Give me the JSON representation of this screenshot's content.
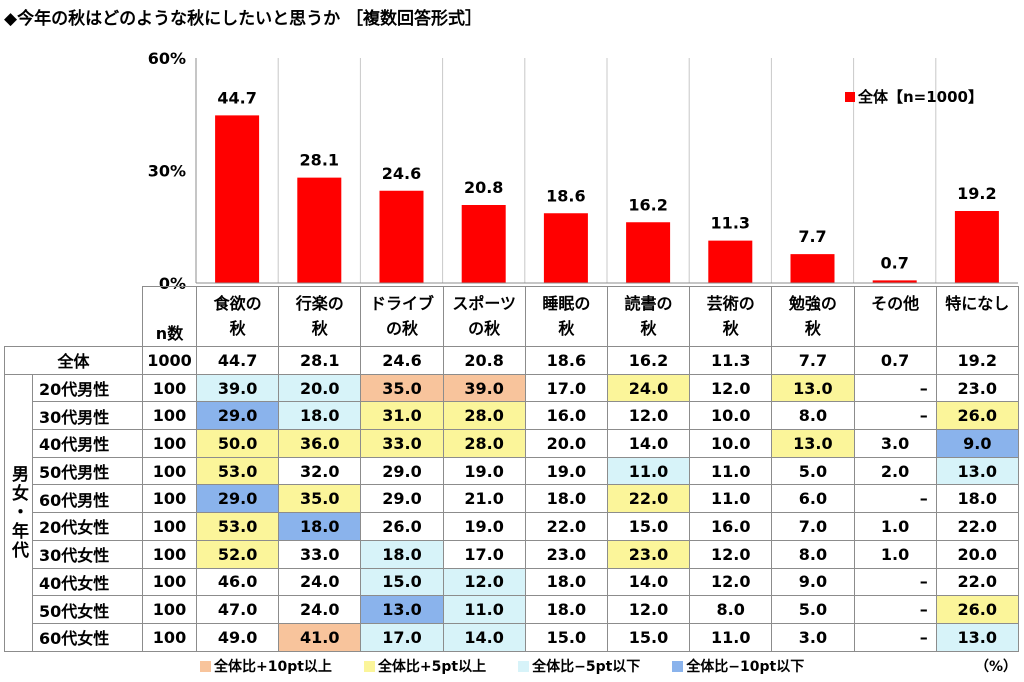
{
  "title": "◆今年の秋はどのような秋にしたいと思うか ［複数回答形式］",
  "chart_data": {
    "type": "bar",
    "categories": [
      "食欲の\n秋",
      "行楽の\n秋",
      "ドライブ\nの秋",
      "スポーツ\nの秋",
      "睡眠の\n秋",
      "読書の\n秋",
      "芸術の\n秋",
      "勉強の\n秋",
      "その他",
      "特になし"
    ],
    "series": [
      {
        "name": "全体【n=1000】",
        "values": [
          44.7,
          28.1,
          24.6,
          20.8,
          18.6,
          16.2,
          11.3,
          7.7,
          0.7,
          19.2
        ]
      }
    ],
    "data_labels": [
      "44.7",
      "28.1",
      "24.6",
      "20.8",
      "18.6",
      "16.2",
      "11.3",
      "7.7",
      "0.7",
      "19.2"
    ],
    "y_ticks": [
      "60%",
      "30%",
      "0%"
    ],
    "ylim": [
      0,
      60
    ],
    "bar_color": "#ff0000",
    "legend_position": "top-right"
  },
  "table": {
    "n_header": "n数",
    "group_label": "男女・年代",
    "total_row": {
      "label": "全体",
      "n": "1000",
      "values": [
        "44.7",
        "28.1",
        "24.6",
        "20.8",
        "18.6",
        "16.2",
        "11.3",
        "7.7",
        "0.7",
        "19.2"
      ]
    },
    "rows": [
      {
        "label": "20代男性",
        "n": "100",
        "values": [
          "39.0",
          "20.0",
          "35.0",
          "39.0",
          "17.0",
          "24.0",
          "12.0",
          "13.0",
          "–",
          "23.0"
        ],
        "shading": [
          3,
          3,
          1,
          1,
          0,
          2,
          0,
          2,
          0,
          0
        ]
      },
      {
        "label": "30代男性",
        "n": "100",
        "values": [
          "29.0",
          "18.0",
          "31.0",
          "28.0",
          "16.0",
          "12.0",
          "10.0",
          "8.0",
          "–",
          "26.0"
        ],
        "shading": [
          4,
          3,
          2,
          2,
          0,
          0,
          0,
          0,
          0,
          2
        ]
      },
      {
        "label": "40代男性",
        "n": "100",
        "values": [
          "50.0",
          "36.0",
          "33.0",
          "28.0",
          "20.0",
          "14.0",
          "10.0",
          "13.0",
          "3.0",
          "9.0"
        ],
        "shading": [
          2,
          2,
          2,
          2,
          0,
          0,
          0,
          2,
          0,
          4
        ]
      },
      {
        "label": "50代男性",
        "n": "100",
        "values": [
          "53.0",
          "32.0",
          "29.0",
          "19.0",
          "19.0",
          "11.0",
          "11.0",
          "5.0",
          "2.0",
          "13.0"
        ],
        "shading": [
          2,
          0,
          0,
          0,
          0,
          3,
          0,
          0,
          0,
          3
        ]
      },
      {
        "label": "60代男性",
        "n": "100",
        "values": [
          "29.0",
          "35.0",
          "29.0",
          "21.0",
          "18.0",
          "22.0",
          "11.0",
          "6.0",
          "–",
          "18.0"
        ],
        "shading": [
          4,
          2,
          0,
          0,
          0,
          2,
          0,
          0,
          0,
          0
        ]
      },
      {
        "label": "20代女性",
        "n": "100",
        "values": [
          "53.0",
          "18.0",
          "26.0",
          "19.0",
          "22.0",
          "15.0",
          "16.0",
          "7.0",
          "1.0",
          "22.0"
        ],
        "shading": [
          2,
          4,
          0,
          0,
          0,
          0,
          0,
          0,
          0,
          0
        ]
      },
      {
        "label": "30代女性",
        "n": "100",
        "values": [
          "52.0",
          "33.0",
          "18.0",
          "17.0",
          "23.0",
          "23.0",
          "12.0",
          "8.0",
          "1.0",
          "20.0"
        ],
        "shading": [
          2,
          0,
          3,
          0,
          0,
          2,
          0,
          0,
          0,
          0
        ]
      },
      {
        "label": "40代女性",
        "n": "100",
        "values": [
          "46.0",
          "24.0",
          "15.0",
          "12.0",
          "18.0",
          "14.0",
          "12.0",
          "9.0",
          "–",
          "22.0"
        ],
        "shading": [
          0,
          0,
          3,
          3,
          0,
          0,
          0,
          0,
          0,
          0
        ]
      },
      {
        "label": "50代女性",
        "n": "100",
        "values": [
          "47.0",
          "24.0",
          "13.0",
          "11.0",
          "18.0",
          "12.0",
          "8.0",
          "5.0",
          "–",
          "26.0"
        ],
        "shading": [
          0,
          0,
          4,
          3,
          0,
          0,
          0,
          0,
          0,
          2
        ]
      },
      {
        "label": "60代女性",
        "n": "100",
        "values": [
          "49.0",
          "41.0",
          "17.0",
          "14.0",
          "15.0",
          "15.0",
          "11.0",
          "3.0",
          "–",
          "13.0"
        ],
        "shading": [
          0,
          1,
          3,
          3,
          0,
          0,
          0,
          0,
          0,
          3
        ]
      }
    ]
  },
  "shading_legend": [
    {
      "label": "全体比+10pt以上",
      "color": "#f8c49c"
    },
    {
      "label": "全体比+5pt以上",
      "color": "#fbf59a"
    },
    {
      "label": "全体比−5pt以下",
      "color": "#d7f3f9"
    },
    {
      "label": "全体比−10pt以下",
      "color": "#8ab3ec"
    }
  ],
  "unit_label": "（%）"
}
